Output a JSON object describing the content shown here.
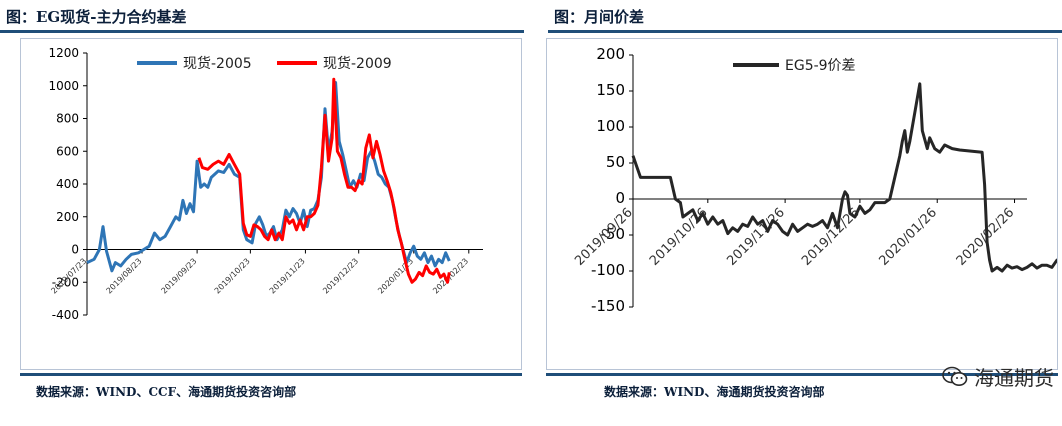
{
  "left_panel": {
    "title": "图：EG现货-主力合约基差",
    "source": "数据来源：WIND、CCF、海通期货投资咨询部"
  },
  "right_panel": {
    "title": "图：月间价差",
    "source": "数据来源：WIND、海通期货投资咨询部"
  },
  "watermark": {
    "text": "海通期货",
    "icon": "wechat-icon"
  },
  "chart_data": [
    {
      "type": "line",
      "title": "",
      "xlabel": "",
      "ylabel": "",
      "ylim": [
        -400,
        1200
      ],
      "y_ticks": [
        -400,
        -200,
        0,
        200,
        400,
        600,
        800,
        1000,
        1200
      ],
      "x_tick_labels": [
        "2019/07/23",
        "2019/08/23",
        "2019/09/23",
        "2019/10/23",
        "2019/11/23",
        "2019/12/23",
        "2020/01/23",
        "2020/02/23"
      ],
      "x_tick_positions": [
        0,
        31,
        62,
        92,
        123,
        153,
        184,
        215
      ],
      "x_max": 223,
      "grid": false,
      "legend": "top-center",
      "series": [
        {
          "name": "现货-2005",
          "color": "#2e75b6",
          "points": [
            [
              0,
              -80
            ],
            [
              4,
              -60
            ],
            [
              7,
              0
            ],
            [
              9,
              140
            ],
            [
              11,
              -10
            ],
            [
              14,
              -130
            ],
            [
              16,
              -80
            ],
            [
              19,
              -100
            ],
            [
              22,
              -60
            ],
            [
              25,
              -30
            ],
            [
              29,
              -20
            ],
            [
              32,
              0
            ],
            [
              35,
              20
            ],
            [
              38,
              100
            ],
            [
              41,
              60
            ],
            [
              44,
              80
            ],
            [
              47,
              140
            ],
            [
              50,
              200
            ],
            [
              52,
              180
            ],
            [
              54,
              300
            ],
            [
              56,
              220
            ],
            [
              58,
              280
            ],
            [
              60,
              230
            ],
            [
              62,
              540
            ],
            [
              64,
              380
            ],
            [
              66,
              400
            ],
            [
              68,
              380
            ],
            [
              70,
              440
            ],
            [
              74,
              480
            ],
            [
              77,
              470
            ],
            [
              80,
              520
            ],
            [
              83,
              460
            ],
            [
              86,
              440
            ],
            [
              88,
              120
            ],
            [
              90,
              60
            ],
            [
              93,
              40
            ],
            [
              95,
              160
            ],
            [
              97,
              200
            ],
            [
              99,
              150
            ],
            [
              101,
              80
            ],
            [
              103,
              100
            ],
            [
              105,
              140
            ],
            [
              107,
              60
            ],
            [
              110,
              120
            ],
            [
              112,
              240
            ],
            [
              114,
              200
            ],
            [
              116,
              250
            ],
            [
              118,
              220
            ],
            [
              120,
              160
            ],
            [
              122,
              240
            ],
            [
              124,
              140
            ],
            [
              126,
              240
            ],
            [
              128,
              250
            ],
            [
              130,
              300
            ],
            [
              132,
              440
            ],
            [
              134,
              860
            ],
            [
              136,
              600
            ],
            [
              138,
              720
            ],
            [
              140,
              1020
            ],
            [
              142,
              660
            ],
            [
              144,
              580
            ],
            [
              146,
              480
            ],
            [
              148,
              380
            ],
            [
              150,
              420
            ],
            [
              152,
              380
            ],
            [
              154,
              460
            ],
            [
              156,
              420
            ],
            [
              158,
              560
            ],
            [
              160,
              600
            ],
            [
              162,
              540
            ],
            [
              164,
              460
            ],
            [
              166,
              440
            ],
            [
              168,
              400
            ],
            [
              170,
              380
            ],
            [
              172,
              300
            ],
            [
              174,
              180
            ],
            [
              176,
              80
            ],
            [
              178,
              0
            ],
            [
              180,
              -80
            ],
            [
              182,
              -20
            ],
            [
              184,
              20
            ],
            [
              186,
              -40
            ],
            [
              188,
              -60
            ],
            [
              190,
              -20
            ],
            [
              192,
              -80
            ],
            [
              194,
              -40
            ],
            [
              196,
              -100
            ],
            [
              198,
              -60
            ],
            [
              200,
              -80
            ],
            [
              202,
              -20
            ],
            [
              204,
              -70
            ]
          ]
        },
        {
          "name": "现货-2009",
          "color": "#ff0000",
          "points": [
            [
              63,
              560
            ],
            [
              65,
              500
            ],
            [
              68,
              490
            ],
            [
              71,
              520
            ],
            [
              74,
              540
            ],
            [
              77,
              520
            ],
            [
              80,
              580
            ],
            [
              83,
              520
            ],
            [
              86,
              460
            ],
            [
              88,
              160
            ],
            [
              90,
              90
            ],
            [
              92,
              80
            ],
            [
              94,
              150
            ],
            [
              96,
              140
            ],
            [
              98,
              120
            ],
            [
              100,
              80
            ],
            [
              102,
              60
            ],
            [
              104,
              120
            ],
            [
              106,
              60
            ],
            [
              108,
              100
            ],
            [
              110,
              60
            ],
            [
              112,
              200
            ],
            [
              114,
              160
            ],
            [
              116,
              180
            ],
            [
              118,
              120
            ],
            [
              120,
              180
            ],
            [
              122,
              120
            ],
            [
              124,
              200
            ],
            [
              126,
              200
            ],
            [
              128,
              220
            ],
            [
              130,
              270
            ],
            [
              132,
              500
            ],
            [
              134,
              820
            ],
            [
              136,
              540
            ],
            [
              138,
              680
            ],
            [
              139,
              1040
            ],
            [
              141,
              600
            ],
            [
              143,
              560
            ],
            [
              145,
              460
            ],
            [
              147,
              380
            ],
            [
              149,
              380
            ],
            [
              151,
              360
            ],
            [
              153,
              420
            ],
            [
              155,
              400
            ],
            [
              157,
              620
            ],
            [
              159,
              700
            ],
            [
              161,
              560
            ],
            [
              163,
              660
            ],
            [
              165,
              580
            ],
            [
              167,
              480
            ],
            [
              169,
              420
            ],
            [
              171,
              350
            ],
            [
              173,
              250
            ],
            [
              175,
              120
            ],
            [
              177,
              40
            ],
            [
              179,
              -60
            ],
            [
              181,
              -150
            ],
            [
              183,
              -200
            ],
            [
              185,
              -180
            ],
            [
              187,
              -140
            ],
            [
              189,
              -160
            ],
            [
              191,
              -100
            ],
            [
              193,
              -140
            ],
            [
              195,
              -150
            ],
            [
              197,
              -120
            ],
            [
              199,
              -170
            ],
            [
              201,
              -150
            ],
            [
              203,
              -200
            ],
            [
              204,
              -140
            ]
          ]
        }
      ]
    },
    {
      "type": "line",
      "title": "",
      "xlabel": "",
      "ylabel": "",
      "ylim": [
        -150,
        200
      ],
      "y_ticks": [
        -150,
        -100,
        -50,
        0,
        50,
        100,
        150,
        200
      ],
      "x_tick_labels": [
        "2019/09/26",
        "2019/10/26",
        "2019/11/26",
        "2019/12/26",
        "2020/01/26",
        "2020/02/26"
      ],
      "x_tick_positions": [
        0,
        30,
        61,
        91,
        122,
        153
      ],
      "x_max": 158,
      "grid": false,
      "legend": "top-center",
      "series": [
        {
          "name": "EG5-9价差",
          "color": "#262626",
          "points": [
            [
              0,
              60
            ],
            [
              3,
              30
            ],
            [
              6,
              30
            ],
            [
              9,
              30
            ],
            [
              12,
              30
            ],
            [
              15,
              30
            ],
            [
              17,
              0
            ],
            [
              19,
              -5
            ],
            [
              20,
              -25
            ],
            [
              22,
              -20
            ],
            [
              24,
              -15
            ],
            [
              26,
              -30
            ],
            [
              28,
              -20
            ],
            [
              30,
              -35
            ],
            [
              32,
              -25
            ],
            [
              34,
              -35
            ],
            [
              36,
              -30
            ],
            [
              38,
              -48
            ],
            [
              40,
              -40
            ],
            [
              42,
              -45
            ],
            [
              44,
              -35
            ],
            [
              46,
              -38
            ],
            [
              48,
              -25
            ],
            [
              50,
              -35
            ],
            [
              52,
              -30
            ],
            [
              54,
              -45
            ],
            [
              56,
              -30
            ],
            [
              58,
              -35
            ],
            [
              60,
              -45
            ],
            [
              62,
              -50
            ],
            [
              64,
              -35
            ],
            [
              66,
              -45
            ],
            [
              68,
              -40
            ],
            [
              70,
              -35
            ],
            [
              72,
              -38
            ],
            [
              74,
              -35
            ],
            [
              76,
              -30
            ],
            [
              78,
              -40
            ],
            [
              80,
              -20
            ],
            [
              82,
              -40
            ],
            [
              84,
              0
            ],
            [
              85,
              10
            ],
            [
              86,
              5
            ],
            [
              87,
              -20
            ],
            [
              89,
              -25
            ],
            [
              91,
              -10
            ],
            [
              93,
              -20
            ],
            [
              95,
              -15
            ],
            [
              97,
              -5
            ],
            [
              99,
              -5
            ],
            [
              101,
              -5
            ],
            [
              103,
              0
            ],
            [
              105,
              30
            ],
            [
              107,
              60
            ],
            [
              108,
              80
            ],
            [
              109,
              95
            ],
            [
              110,
              65
            ],
            [
              111,
              80
            ],
            [
              113,
              120
            ],
            [
              115,
              160
            ],
            [
              116,
              95
            ],
            [
              118,
              70
            ],
            [
              119,
              85
            ],
            [
              121,
              70
            ],
            [
              123,
              65
            ],
            [
              125,
              75
            ],
            [
              128,
              70
            ],
            [
              131,
              68
            ],
            [
              134,
              67
            ],
            [
              137,
              66
            ],
            [
              140,
              65
            ],
            [
              141,
              20
            ],
            [
              142,
              -60
            ],
            [
              143,
              -85
            ],
            [
              144,
              -100
            ],
            [
              146,
              -95
            ],
            [
              148,
              -100
            ],
            [
              150,
              -92
            ],
            [
              152,
              -96
            ],
            [
              154,
              -94
            ],
            [
              156,
              -98
            ],
            [
              158,
              -95
            ],
            [
              160,
              -90
            ],
            [
              162,
              -96
            ],
            [
              164,
              -92
            ],
            [
              166,
              -92
            ],
            [
              168,
              -95
            ],
            [
              170,
              -85
            ],
            [
              172,
              -92
            ],
            [
              174,
              -95
            ],
            [
              176,
              -90
            ],
            [
              178,
              -94
            ],
            [
              180,
              -100
            ]
          ]
        }
      ]
    }
  ]
}
